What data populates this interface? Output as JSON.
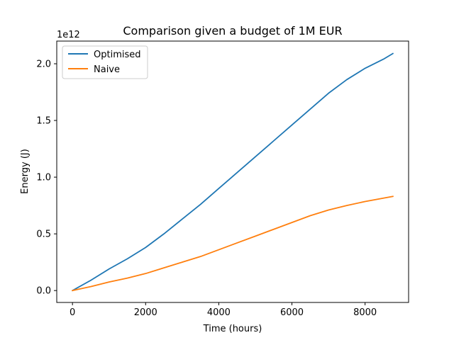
{
  "chart_data": {
    "type": "line",
    "title": "Comparison given a budget of 1M EUR",
    "xlabel": "Time (hours)",
    "ylabel": "Energy (J)",
    "y_offset_label": "1e12",
    "xlim": [
      -430,
      9190
    ],
    "ylim": [
      -0.105,
      2.2
    ],
    "x_ticks": [
      0,
      2000,
      4000,
      6000,
      8000
    ],
    "x_tick_labels": [
      "0",
      "2000",
      "4000",
      "6000",
      "8000"
    ],
    "y_ticks": [
      0.0,
      0.5,
      1.0,
      1.5,
      2.0
    ],
    "y_tick_labels": [
      "0.0",
      "0.5",
      "1.0",
      "1.5",
      "2.0"
    ],
    "grid": false,
    "legend": "top-left",
    "series": [
      {
        "name": "Optimised",
        "color": "#1f77b4",
        "x": [
          0,
          500,
          1000,
          1500,
          2000,
          2500,
          3000,
          3500,
          4000,
          4500,
          5000,
          5500,
          6000,
          6500,
          7000,
          7500,
          8000,
          8500,
          8760
        ],
        "y": [
          0.0,
          0.09,
          0.19,
          0.28,
          0.38,
          0.5,
          0.63,
          0.76,
          0.9,
          1.04,
          1.18,
          1.32,
          1.46,
          1.6,
          1.74,
          1.86,
          1.96,
          2.04,
          2.09
        ]
      },
      {
        "name": "Naive",
        "color": "#ff7f0e",
        "x": [
          0,
          500,
          1000,
          1500,
          2000,
          2500,
          3000,
          3500,
          4000,
          4500,
          5000,
          5500,
          6000,
          6500,
          7000,
          7500,
          8000,
          8500,
          8760
        ],
        "y": [
          0.0,
          0.035,
          0.075,
          0.11,
          0.15,
          0.2,
          0.25,
          0.3,
          0.36,
          0.42,
          0.48,
          0.54,
          0.6,
          0.66,
          0.71,
          0.75,
          0.785,
          0.815,
          0.83
        ]
      }
    ]
  }
}
